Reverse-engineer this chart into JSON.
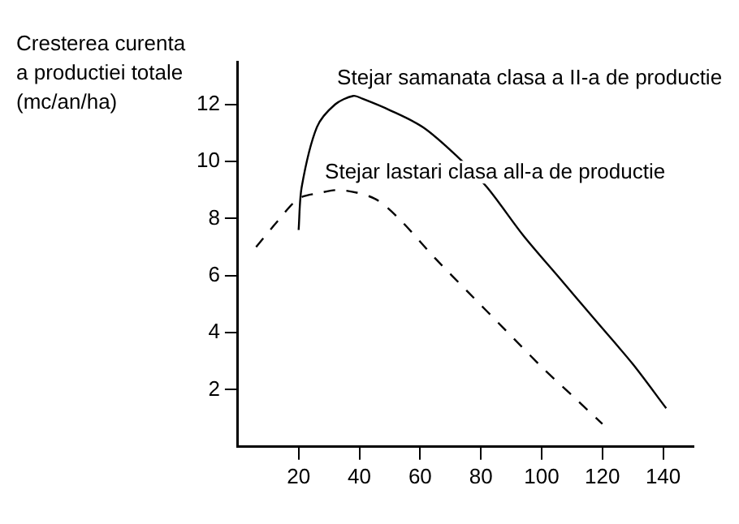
{
  "chart_data": {
    "type": "line",
    "ylabel": "Cresterea curenta a productiei totale (mc/an/ha)",
    "xlim": [
      0,
      150
    ],
    "ylim": [
      0,
      13.5
    ],
    "xticks": [
      20,
      40,
      60,
      80,
      100,
      120,
      140
    ],
    "yticks": [
      2,
      4,
      6,
      8,
      10,
      12
    ],
    "grid": false,
    "legend": false,
    "marker": "none",
    "series": [
      {
        "name": "Stejar samanata clasa a II-a de productie",
        "color": "#000000",
        "line_style": "solid",
        "x": [
          20,
          21,
          26,
          32,
          38,
          41,
          50,
          61,
          72,
          82,
          94,
          106,
          118,
          130,
          141
        ],
        "values": [
          7.6,
          9.1,
          11.2,
          12.0,
          12.3,
          12.2,
          11.8,
          11.2,
          10.2,
          9.1,
          7.4,
          5.9,
          4.4,
          2.9,
          1.35
        ]
      },
      {
        "name": "Stejar lastari clasa all-a de productie",
        "color": "#000000",
        "line_style": "dashed",
        "x": [
          6,
          13,
          20,
          27,
          34,
          45,
          53,
          65,
          76,
          88,
          100,
          110,
          120
        ],
        "values": [
          7.0,
          7.9,
          8.7,
          8.9,
          9.0,
          8.7,
          8.0,
          6.6,
          5.4,
          4.1,
          2.8,
          1.8,
          0.8
        ]
      }
    ]
  }
}
